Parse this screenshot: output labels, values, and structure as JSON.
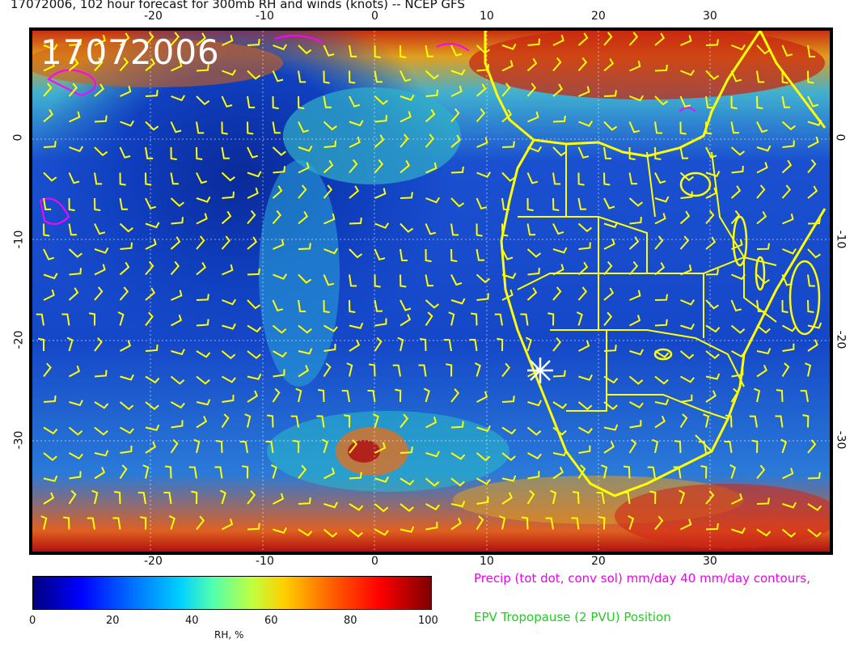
{
  "title": "17072006, 102 hour forecast for 300mb RH and winds (knots) -- NCEP GFS",
  "map": {
    "datestamp": "17072006",
    "lon_ticks_top": [
      "-20",
      "-10",
      "0",
      "10",
      "20",
      "30"
    ],
    "lon_ticks_bottom": [
      "-20",
      "-10",
      "0",
      "10",
      "20",
      "30"
    ],
    "lat_ticks_left": [
      "0",
      "-10",
      "-20",
      "-30"
    ],
    "lat_ticks_right": [
      "0",
      "-10",
      "-20",
      "-30"
    ],
    "coast_color": "#ffff00",
    "barb_color": "#ffff00",
    "precip_contour_color": "#ff00ff",
    "marker": "white star near 14E, 23S"
  },
  "colorbar": {
    "labels": [
      "0",
      "20",
      "40",
      "60",
      "80",
      "100"
    ],
    "title": "RH, %"
  },
  "legend": {
    "precip": "Precip (tot dot, conv sol) mm/day 40 mm/day contours,",
    "epv": "EPV Tropopause (2 PVU) Position"
  }
}
